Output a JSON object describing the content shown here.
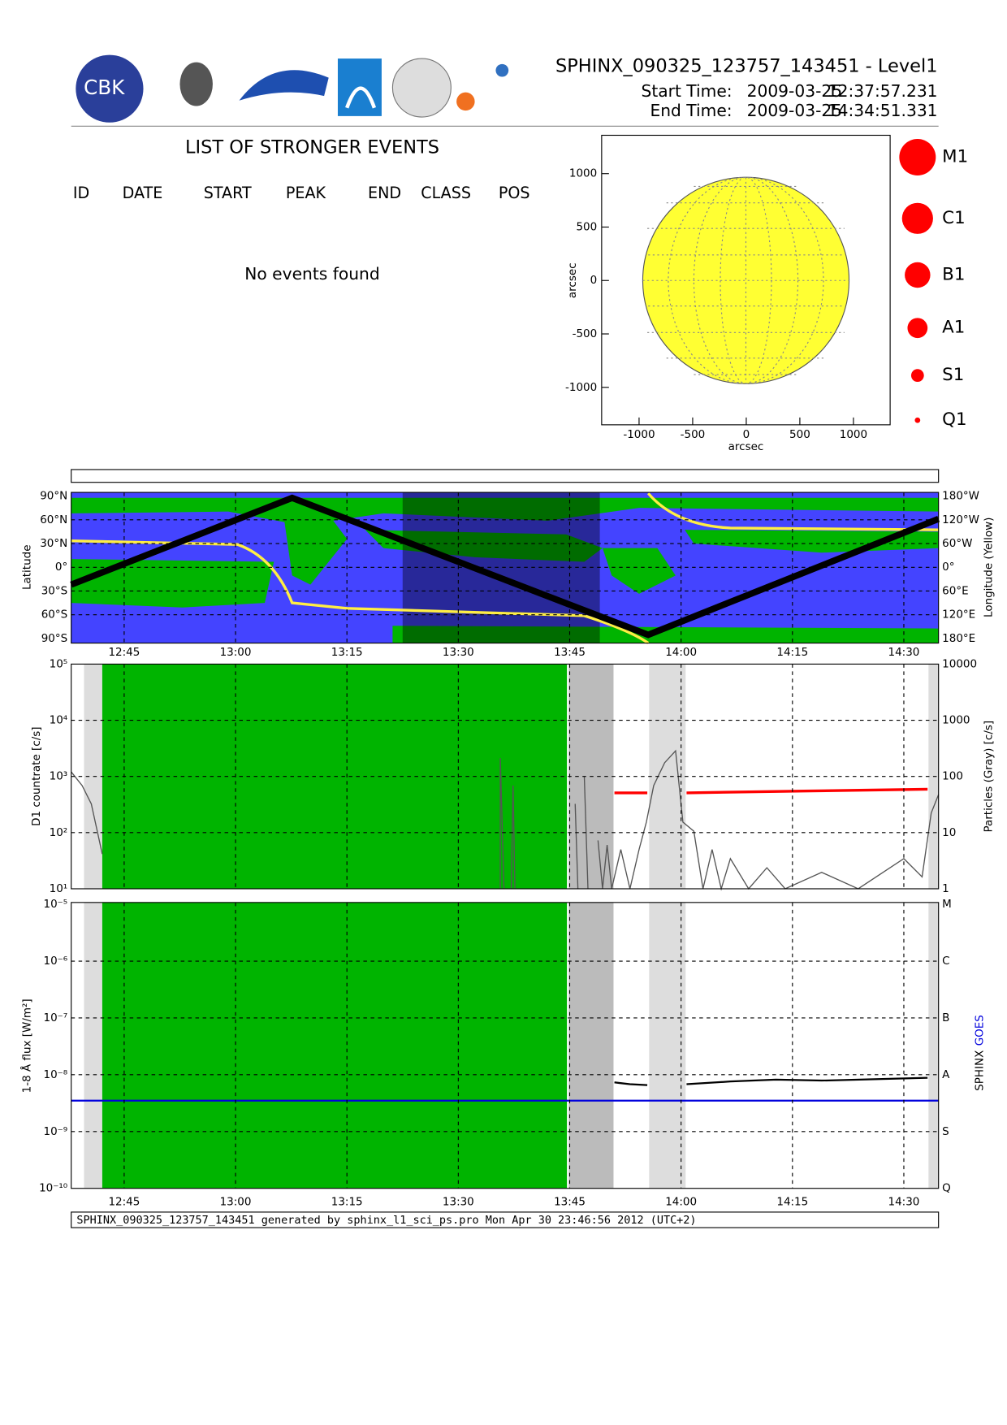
{
  "header": {
    "logo_text": "CBK",
    "title": "SPHINX_090325_123757_143451 - Level1",
    "start_label": "Start Time:",
    "start_date": "2009-03-25",
    "start_time": "12:37:57.231",
    "end_label": "End Time:",
    "end_date": "2009-03-25",
    "end_time": "14:34:51.331"
  },
  "events": {
    "title": "LIST OF STRONGER EVENTS",
    "columns": [
      "ID",
      "DATE",
      "START",
      "PEAK",
      "END",
      "CLASS",
      "POS"
    ],
    "message": "No events found"
  },
  "sun_plot": {
    "xlabel": "arcsec",
    "ylabel": "arcsec",
    "xticks": [
      -1000,
      -500,
      0,
      500,
      1000
    ],
    "yticks": [
      1000,
      500,
      0,
      -500,
      -1000
    ]
  },
  "legend": [
    "M1",
    "C1",
    "B1",
    "A1",
    "S1",
    "Q1"
  ],
  "map": {
    "ylabel": "Latitude",
    "y2label": "Longitude (Yellow)",
    "lat_ticks": [
      "90°N",
      "60°N",
      "30°N",
      "0°",
      "30°S",
      "60°S",
      "90°S"
    ],
    "lon_ticks": [
      "180°W",
      "120°W",
      "60°W",
      "0°",
      "60°E",
      "120°E",
      "180°E"
    ]
  },
  "time_ticks": [
    "12:45",
    "13:00",
    "13:15",
    "13:30",
    "13:45",
    "14:00",
    "14:15",
    "14:30"
  ],
  "countrate": {
    "ylabel": "D1 countrate [c/s]",
    "y2label": "Particles (Gray) [c/s]",
    "yticks": [
      "10⁵",
      "10⁴",
      "10³",
      "10²",
      "10¹"
    ],
    "y2ticks": [
      10000,
      1000,
      100,
      10,
      1
    ]
  },
  "flux": {
    "ylabel": "1-8 Å flux [W/m²]",
    "y2label_sphinx": "SPHINX",
    "y2label_goes": "GOES",
    "yticks": [
      "10⁻⁵",
      "10⁻⁶",
      "10⁻⁷",
      "10⁻⁸",
      "10⁻⁹",
      "10⁻¹⁰"
    ],
    "classes": [
      "M",
      "C",
      "B",
      "A",
      "S",
      "Q"
    ]
  },
  "footer": "SPHINX_090325_123757_143451 generated by sphinx_l1_sci_ps.pro Mon Apr 30 23:46:56 2012 (UTC+2)"
}
